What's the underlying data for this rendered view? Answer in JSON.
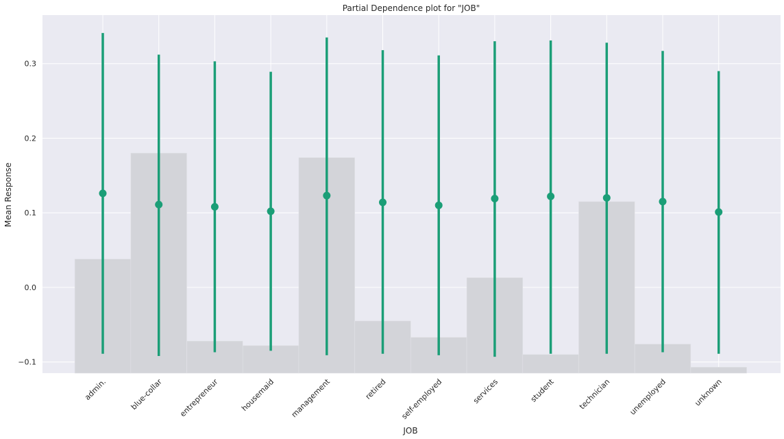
{
  "chart_data": {
    "type": "errorbar_with_histogram",
    "title": "Partial Dependence plot for \"JOB\"",
    "xlabel": "JOB",
    "ylabel": "Mean Response",
    "ylim": [
      -0.115,
      0.365
    ],
    "yticks": [
      -0.1,
      0.0,
      0.1,
      0.2,
      0.3
    ],
    "ytick_labels": [
      "−0.1",
      "0.0",
      "0.1",
      "0.2",
      "0.3"
    ],
    "grid": true,
    "categories": [
      "admin.",
      "blue-collar",
      "entrepreneur",
      "housemaid",
      "management",
      "retired",
      "self-employed",
      "services",
      "student",
      "technician",
      "unemployed",
      "unknown"
    ],
    "mean_response": [
      0.126,
      0.111,
      0.108,
      0.102,
      0.123,
      0.114,
      0.11,
      0.119,
      0.122,
      0.12,
      0.115,
      0.101
    ],
    "lower": [
      -0.089,
      -0.092,
      -0.087,
      -0.085,
      -0.091,
      -0.089,
      -0.091,
      -0.093,
      -0.089,
      -0.089,
      -0.087,
      -0.089
    ],
    "upper": [
      0.341,
      0.312,
      0.303,
      0.289,
      0.335,
      0.318,
      0.311,
      0.33,
      0.331,
      0.328,
      0.317,
      0.29
    ],
    "histogram_tops": [
      0.038,
      0.18,
      -0.072,
      -0.078,
      0.174,
      -0.045,
      -0.067,
      0.013,
      -0.09,
      0.115,
      -0.076,
      -0.107
    ],
    "colors": {
      "line": "#1b9e77",
      "histogram": "#d3d4d9",
      "plot_background": "#eaeaf2",
      "grid": "#ffffff"
    }
  }
}
